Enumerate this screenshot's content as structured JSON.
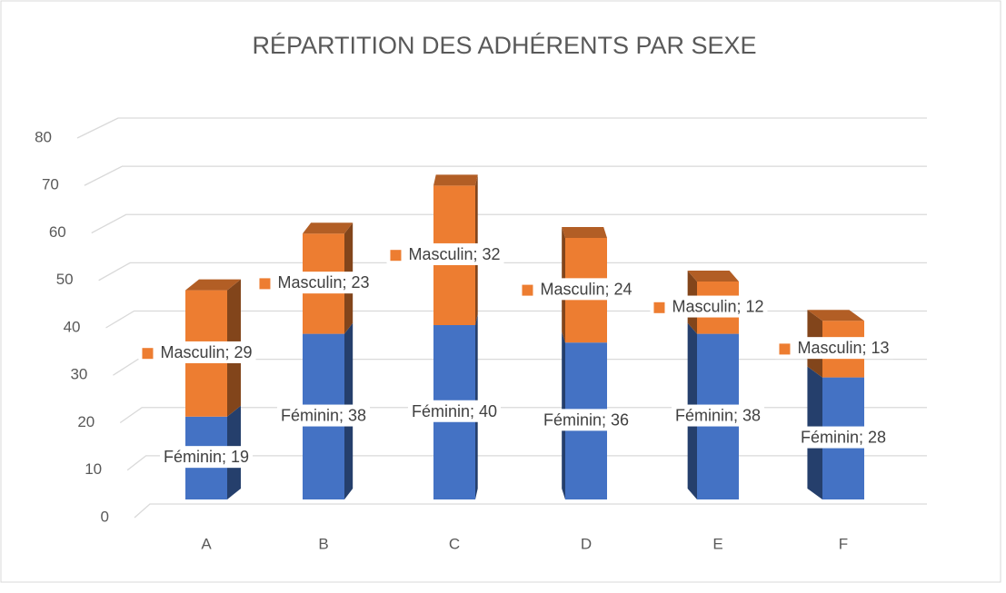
{
  "chart_data": {
    "type": "bar3d_stacked",
    "title": "RÉPARTITION DES ADHÉRENTS PAR SEXE",
    "categories": [
      "A",
      "B",
      "C",
      "D",
      "E",
      "F"
    ],
    "series": [
      {
        "color": "#4472c4",
        "values": [
          19,
          38,
          40,
          36,
          38,
          28
        ],
        "value_labels": [
          "Féminin; 19",
          "Féminin; 38",
          "Féminin; 40",
          "Féminin; 36",
          "Féminin; 38",
          "Féminin; 28"
        ]
      },
      {
        "color": "#ed7d31",
        "values": [
          29,
          23,
          32,
          24,
          12,
          13
        ],
        "value_labels": [
          "Masculin; 29",
          "Masculin; 23",
          "Masculin; 32",
          "Masculin; 24",
          "Masculin; 12",
          "Masculin; 13"
        ]
      }
    ],
    "ylim": [
      0,
      80
    ],
    "yticks": [
      0,
      10,
      20,
      30,
      40,
      50,
      60,
      70,
      80
    ],
    "grid": true
  }
}
